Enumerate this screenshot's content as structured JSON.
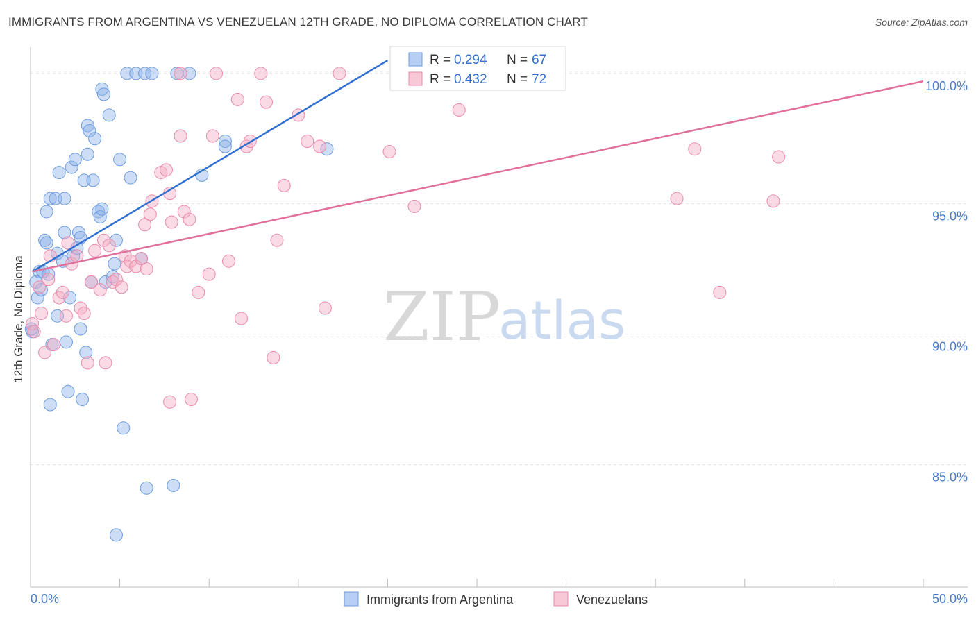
{
  "chart_data": {
    "type": "scatter",
    "title": "IMMIGRANTS FROM ARGENTINA VS VENEZUELAN 12TH GRADE, NO DIPLOMA CORRELATION CHART",
    "source": "Source: ZipAtlas.com",
    "xlabel": "",
    "ylabel": "12th Grade, No Diploma",
    "xlim": [
      0,
      50
    ],
    "ylim": [
      80.3,
      100.9
    ],
    "x_tick_labels": {
      "left": "0.0%",
      "right": "50.0%"
    },
    "y_ticks": [
      {
        "value": 100,
        "label": "100.0%"
      },
      {
        "value": 95,
        "label": "95.0%"
      },
      {
        "value": 90,
        "label": "90.0%"
      },
      {
        "value": 85,
        "label": "85.0%"
      }
    ],
    "watermark": {
      "zip": "ZIP",
      "atlas": "atlas"
    },
    "legend": [
      {
        "r_label": "R = ",
        "r_value": "0.294",
        "n_label": "N = ",
        "n_value": "67"
      },
      {
        "r_label": "R = ",
        "r_value": "0.432",
        "n_label": "N = ",
        "n_value": "72"
      }
    ],
    "series": [
      {
        "name": "Immigrants from Argentina",
        "color": "#8fb4e8",
        "stroke": "#6b9be0",
        "line_color": "#2f6fcf",
        "trend": {
          "x": [
            0.1,
            20
          ],
          "y": [
            92.4,
            100.5
          ]
        },
        "points": [
          [
            0.1,
            90.1
          ],
          [
            0.3,
            92.0
          ],
          [
            0.4,
            91.4
          ],
          [
            0.5,
            92.4
          ],
          [
            0.6,
            91.7
          ],
          [
            0.7,
            92.4
          ],
          [
            0.8,
            93.6
          ],
          [
            0.9,
            94.7
          ],
          [
            0.9,
            93.5
          ],
          [
            1.0,
            92.3
          ],
          [
            1.1,
            87.3
          ],
          [
            1.1,
            95.2
          ],
          [
            1.2,
            89.6
          ],
          [
            1.4,
            95.2
          ],
          [
            1.5,
            93.1
          ],
          [
            1.5,
            90.7
          ],
          [
            1.6,
            96.2
          ],
          [
            1.8,
            92.8
          ],
          [
            1.9,
            95.2
          ],
          [
            1.9,
            93.9
          ],
          [
            2.0,
            89.7
          ],
          [
            2.1,
            87.8
          ],
          [
            2.2,
            91.4
          ],
          [
            2.3,
            96.4
          ],
          [
            2.4,
            93.0
          ],
          [
            2.5,
            96.7
          ],
          [
            2.6,
            93.3
          ],
          [
            2.7,
            93.9
          ],
          [
            2.8,
            93.7
          ],
          [
            2.8,
            90.2
          ],
          [
            2.9,
            87.5
          ],
          [
            3.0,
            95.9
          ],
          [
            3.1,
            89.3
          ],
          [
            3.2,
            98.0
          ],
          [
            3.2,
            96.9
          ],
          [
            3.3,
            97.8
          ],
          [
            3.4,
            92.0
          ],
          [
            3.5,
            95.9
          ],
          [
            3.6,
            97.5
          ],
          [
            3.8,
            94.7
          ],
          [
            3.9,
            94.5
          ],
          [
            4.0,
            94.8
          ],
          [
            4.0,
            99.4
          ],
          [
            4.1,
            99.2
          ],
          [
            4.2,
            92.0
          ],
          [
            4.4,
            98.4
          ],
          [
            4.6,
            92.2
          ],
          [
            4.7,
            92.7
          ],
          [
            4.8,
            93.6
          ],
          [
            5.0,
            96.7
          ],
          [
            5.2,
            86.4
          ],
          [
            5.4,
            100.0
          ],
          [
            5.6,
            96.0
          ],
          [
            5.9,
            100.0
          ],
          [
            6.2,
            92.9
          ],
          [
            6.4,
            100.0
          ],
          [
            6.5,
            84.1
          ],
          [
            6.8,
            100.0
          ],
          [
            8.0,
            84.2
          ],
          [
            8.2,
            100.0
          ],
          [
            8.9,
            100.0
          ],
          [
            9.6,
            96.1
          ],
          [
            10.9,
            97.4
          ],
          [
            10.9,
            97.2
          ],
          [
            16.6,
            97.1
          ],
          [
            4.8,
            82.3
          ],
          [
            0.05,
            90.2
          ]
        ]
      },
      {
        "name": "Venezuelans",
        "color": "#f4aec4",
        "stroke": "#ea89aa",
        "line_color": "#e0709a",
        "trend": {
          "x": [
            0.1,
            50
          ],
          "y": [
            92.4,
            99.7
          ]
        },
        "points": [
          [
            0.1,
            90.4
          ],
          [
            0.5,
            91.8
          ],
          [
            0.6,
            90.8
          ],
          [
            0.8,
            89.3
          ],
          [
            1.0,
            92.1
          ],
          [
            1.1,
            93.0
          ],
          [
            1.3,
            89.6
          ],
          [
            1.6,
            91.4
          ],
          [
            1.8,
            91.6
          ],
          [
            2.0,
            90.7
          ],
          [
            2.1,
            93.5
          ],
          [
            2.3,
            92.7
          ],
          [
            2.6,
            93.0
          ],
          [
            2.8,
            91.0
          ],
          [
            3.0,
            90.8
          ],
          [
            3.2,
            88.9
          ],
          [
            3.4,
            92.0
          ],
          [
            3.6,
            93.2
          ],
          [
            3.9,
            91.7
          ],
          [
            4.1,
            93.6
          ],
          [
            4.2,
            88.9
          ],
          [
            4.4,
            93.4
          ],
          [
            4.6,
            92.0
          ],
          [
            4.8,
            92.1
          ],
          [
            5.1,
            91.8
          ],
          [
            5.3,
            93.0
          ],
          [
            5.4,
            92.6
          ],
          [
            5.6,
            92.8
          ],
          [
            5.9,
            92.6
          ],
          [
            6.2,
            92.9
          ],
          [
            6.4,
            94.2
          ],
          [
            6.5,
            92.5
          ],
          [
            6.7,
            94.6
          ],
          [
            6.8,
            95.1
          ],
          [
            7.3,
            96.2
          ],
          [
            7.6,
            96.3
          ],
          [
            7.8,
            95.4
          ],
          [
            7.8,
            87.4
          ],
          [
            7.9,
            94.3
          ],
          [
            8.4,
            97.6
          ],
          [
            8.6,
            94.7
          ],
          [
            8.9,
            94.4
          ],
          [
            9.0,
            87.5
          ],
          [
            9.4,
            91.6
          ],
          [
            10.0,
            92.3
          ],
          [
            10.2,
            97.6
          ],
          [
            11.1,
            92.8
          ],
          [
            11.6,
            99.0
          ],
          [
            11.8,
            90.6
          ],
          [
            12.1,
            97.2
          ],
          [
            12.3,
            97.4
          ],
          [
            12.9,
            100.0
          ],
          [
            13.2,
            98.9
          ],
          [
            13.6,
            89.1
          ],
          [
            13.8,
            93.6
          ],
          [
            14.2,
            95.7
          ],
          [
            15.0,
            98.4
          ],
          [
            15.5,
            97.4
          ],
          [
            16.2,
            97.2
          ],
          [
            16.5,
            91.0
          ],
          [
            17.3,
            100.0
          ],
          [
            20.1,
            97.0
          ],
          [
            21.5,
            94.9
          ],
          [
            24.0,
            98.6
          ],
          [
            36.2,
            95.2
          ],
          [
            37.2,
            97.1
          ],
          [
            38.6,
            91.6
          ],
          [
            41.6,
            95.1
          ],
          [
            41.9,
            96.8
          ],
          [
            10.4,
            100.0
          ],
          [
            8.4,
            100.0
          ],
          [
            0.2,
            90.1
          ]
        ]
      }
    ]
  }
}
